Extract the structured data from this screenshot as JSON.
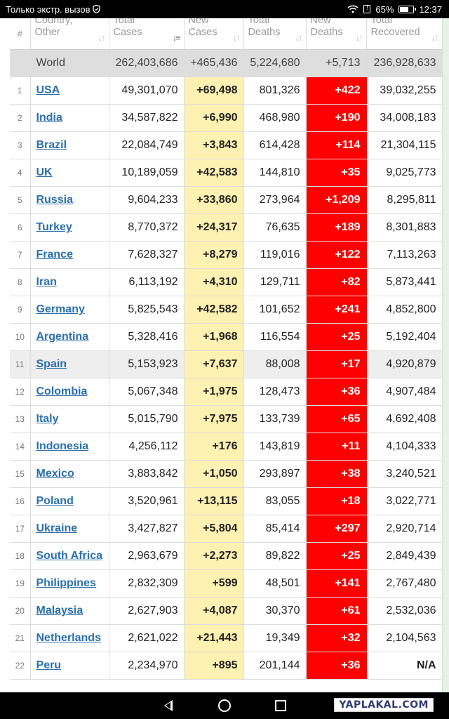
{
  "statusbar": {
    "carrier": "Только экстр. вызов",
    "battery": "65%",
    "battery_level": 0.65,
    "time": "12:37"
  },
  "table": {
    "headers": {
      "num": "#",
      "country": "Country,\nOther",
      "total_cases": "Total\nCases",
      "new_cases": "New\nCases",
      "total_deaths": "Total\nDeaths",
      "new_deaths": "New\nDeaths",
      "total_recovered": "Total\nRecovered"
    },
    "world": {
      "label": "World",
      "total_cases": "262,403,686",
      "new_cases": "+465,436",
      "total_deaths": "5,224,680",
      "new_deaths": "+5,713",
      "total_recovered": "236,928,633"
    },
    "rows": [
      {
        "num": "1",
        "country": "USA",
        "total_cases": "49,301,070",
        "new_cases": "+69,498",
        "total_deaths": "801,326",
        "new_deaths": "+422",
        "total_recovered": "39,032,255"
      },
      {
        "num": "2",
        "country": "India",
        "total_cases": "34,587,822",
        "new_cases": "+6,990",
        "total_deaths": "468,980",
        "new_deaths": "+190",
        "total_recovered": "34,008,183"
      },
      {
        "num": "3",
        "country": "Brazil",
        "total_cases": "22,084,749",
        "new_cases": "+3,843",
        "total_deaths": "614,428",
        "new_deaths": "+114",
        "total_recovered": "21,304,115"
      },
      {
        "num": "4",
        "country": "UK",
        "total_cases": "10,189,059",
        "new_cases": "+42,583",
        "total_deaths": "144,810",
        "new_deaths": "+35",
        "total_recovered": "9,025,773"
      },
      {
        "num": "5",
        "country": "Russia",
        "total_cases": "9,604,233",
        "new_cases": "+33,860",
        "total_deaths": "273,964",
        "new_deaths": "+1,209",
        "total_recovered": "8,295,811"
      },
      {
        "num": "6",
        "country": "Turkey",
        "total_cases": "8,770,372",
        "new_cases": "+24,317",
        "total_deaths": "76,635",
        "new_deaths": "+189",
        "total_recovered": "8,301,883"
      },
      {
        "num": "7",
        "country": "France",
        "total_cases": "7,628,327",
        "new_cases": "+8,279",
        "total_deaths": "119,016",
        "new_deaths": "+122",
        "total_recovered": "7,113,263"
      },
      {
        "num": "8",
        "country": "Iran",
        "total_cases": "6,113,192",
        "new_cases": "+4,310",
        "total_deaths": "129,711",
        "new_deaths": "+82",
        "total_recovered": "5,873,441"
      },
      {
        "num": "9",
        "country": "Germany",
        "total_cases": "5,825,543",
        "new_cases": "+42,582",
        "total_deaths": "101,652",
        "new_deaths": "+241",
        "total_recovered": "4,852,800"
      },
      {
        "num": "10",
        "country": "Argentina",
        "total_cases": "5,328,416",
        "new_cases": "+1,968",
        "total_deaths": "116,554",
        "new_deaths": "+25",
        "total_recovered": "5,192,404"
      },
      {
        "num": "11",
        "country": "Spain",
        "total_cases": "5,153,923",
        "new_cases": "+7,637",
        "total_deaths": "88,008",
        "new_deaths": "+17",
        "total_recovered": "4,920,879"
      },
      {
        "num": "12",
        "country": "Colombia",
        "total_cases": "5,067,348",
        "new_cases": "+1,975",
        "total_deaths": "128,473",
        "new_deaths": "+36",
        "total_recovered": "4,907,484"
      },
      {
        "num": "13",
        "country": "Italy",
        "total_cases": "5,015,790",
        "new_cases": "+7,975",
        "total_deaths": "133,739",
        "new_deaths": "+65",
        "total_recovered": "4,692,408"
      },
      {
        "num": "14",
        "country": "Indonesia",
        "total_cases": "4,256,112",
        "new_cases": "+176",
        "total_deaths": "143,819",
        "new_deaths": "+11",
        "total_recovered": "4,104,333"
      },
      {
        "num": "15",
        "country": "Mexico",
        "total_cases": "3,883,842",
        "new_cases": "+1,050",
        "total_deaths": "293,897",
        "new_deaths": "+38",
        "total_recovered": "3,240,521"
      },
      {
        "num": "16",
        "country": "Poland",
        "total_cases": "3,520,961",
        "new_cases": "+13,115",
        "total_deaths": "83,055",
        "new_deaths": "+18",
        "total_recovered": "3,022,771"
      },
      {
        "num": "17",
        "country": "Ukraine",
        "total_cases": "3,427,827",
        "new_cases": "+5,804",
        "total_deaths": "85,414",
        "new_deaths": "+297",
        "total_recovered": "2,920,714"
      },
      {
        "num": "18",
        "country": "South Africa",
        "total_cases": "2,963,679",
        "new_cases": "+2,273",
        "total_deaths": "89,822",
        "new_deaths": "+25",
        "total_recovered": "2,849,439"
      },
      {
        "num": "19",
        "country": "Philippines",
        "total_cases": "2,832,309",
        "new_cases": "+599",
        "total_deaths": "48,501",
        "new_deaths": "+141",
        "total_recovered": "2,767,480"
      },
      {
        "num": "20",
        "country": "Malaysia",
        "total_cases": "2,627,903",
        "new_cases": "+4,087",
        "total_deaths": "30,370",
        "new_deaths": "+61",
        "total_recovered": "2,532,036"
      },
      {
        "num": "21",
        "country": "Netherlands",
        "total_cases": "2,621,022",
        "new_cases": "+21,443",
        "total_deaths": "19,349",
        "new_deaths": "+32",
        "total_recovered": "2,104,563"
      },
      {
        "num": "22",
        "country": "Peru",
        "total_cases": "2,234,970",
        "new_cases": "+895",
        "total_deaths": "201,144",
        "new_deaths": "+36",
        "total_recovered": "N/A"
      }
    ]
  },
  "watermark": "YAPLAKAL.COM",
  "colors": {
    "new_cases_bg": "#fff1b2",
    "new_deaths_bg": "#ff0000",
    "link": "#2a6fae",
    "world_row_bg": "#dedede"
  }
}
